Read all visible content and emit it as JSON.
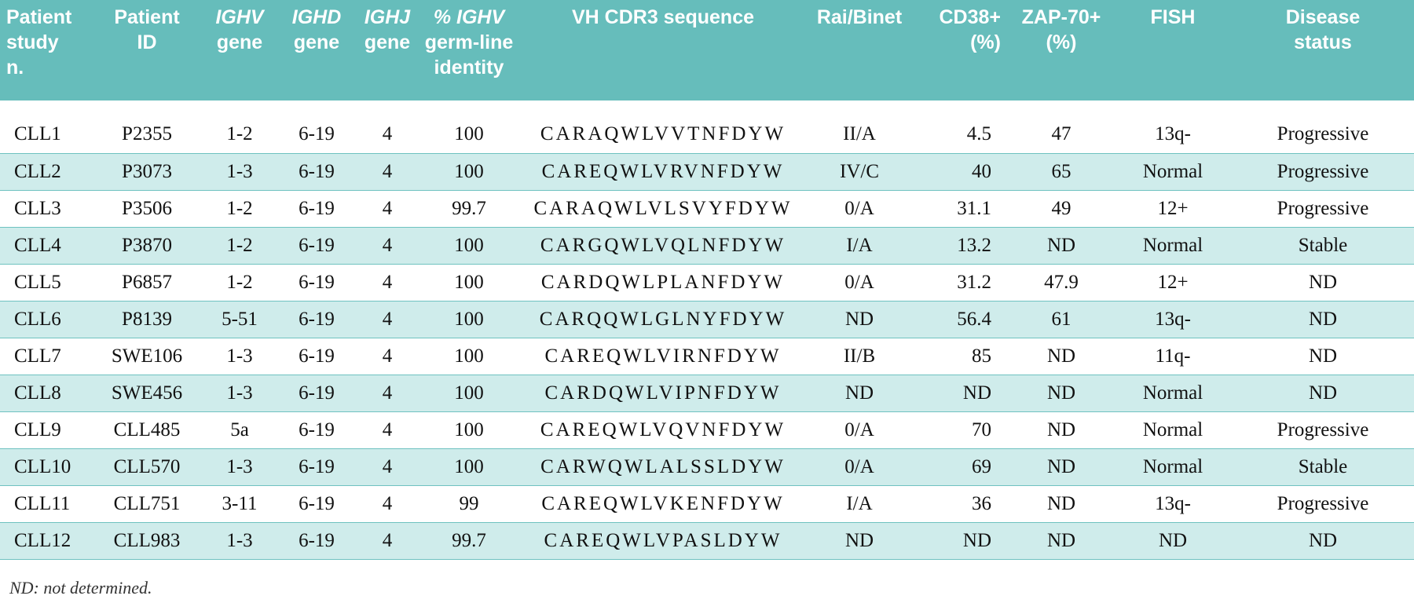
{
  "table": {
    "columns": [
      {
        "key": "study",
        "label_lines": [
          "Patient",
          "study",
          "n."
        ]
      },
      {
        "key": "pid",
        "label_lines": [
          "Patient",
          "ID"
        ]
      },
      {
        "key": "ighv",
        "label_lines": [
          "IGHV",
          "gene"
        ]
      },
      {
        "key": "ighd",
        "label_lines": [
          "IGHD",
          "gene"
        ]
      },
      {
        "key": "ighj",
        "label_lines": [
          "IGHJ",
          "gene"
        ]
      },
      {
        "key": "identity",
        "label_lines": [
          "% IGHV",
          "germ-line",
          "identity"
        ]
      },
      {
        "key": "cdr3",
        "label_lines": [
          "VH CDR3 sequence"
        ]
      },
      {
        "key": "rai",
        "label_lines": [
          "Rai/Binet"
        ]
      },
      {
        "key": "cd38",
        "label_lines": [
          "CD38+",
          "(%)"
        ]
      },
      {
        "key": "zap70",
        "label_lines": [
          "ZAP-70+",
          "(%)"
        ]
      },
      {
        "key": "fish",
        "label_lines": [
          "FISH"
        ]
      },
      {
        "key": "status",
        "label_lines": [
          "Disease",
          "status"
        ]
      }
    ],
    "rows": [
      [
        "CLL1",
        "P2355",
        "1-2",
        "6-19",
        "4",
        "100",
        "CARAQWLVVTNFDYW",
        "II/A",
        "4.5",
        "47",
        "13q-",
        "Progressive"
      ],
      [
        "CLL2",
        "P3073",
        "1-3",
        "6-19",
        "4",
        "100",
        "CAREQWLVRVNFDYW",
        "IV/C",
        "40",
        "65",
        "Normal",
        "Progressive"
      ],
      [
        "CLL3",
        "P3506",
        "1-2",
        "6-19",
        "4",
        "99.7",
        "CARAQWLVLSVYFDYW",
        "0/A",
        "31.1",
        "49",
        "12+",
        "Progressive"
      ],
      [
        "CLL4",
        "P3870",
        "1-2",
        "6-19",
        "4",
        "100",
        "CARGQWLVQLNFDYW",
        "I/A",
        "13.2",
        "ND",
        "Normal",
        "Stable"
      ],
      [
        "CLL5",
        "P6857",
        "1-2",
        "6-19",
        "4",
        "100",
        "CARDQWLPLANFDYW",
        "0/A",
        "31.2",
        "47.9",
        "12+",
        "ND"
      ],
      [
        "CLL6",
        "P8139",
        "5-51",
        "6-19",
        "4",
        "100",
        "CARQQWLGLNYFDYW",
        "ND",
        "56.4",
        "61",
        "13q-",
        "ND"
      ],
      [
        "CLL7",
        "SWE106",
        "1-3",
        "6-19",
        "4",
        "100",
        "CAREQWLVIRNFDYW",
        "II/B",
        "85",
        "ND",
        "11q-",
        "ND"
      ],
      [
        "CLL8",
        "SWE456",
        "1-3",
        "6-19",
        "4",
        "100",
        "CARDQWLVIPNFDYW",
        "ND",
        "ND",
        "ND",
        "Normal",
        "ND"
      ],
      [
        "CLL9",
        "CLL485",
        "5a",
        "6-19",
        "4",
        "100",
        "CAREQWLVQVNFDYW",
        "0/A",
        "70",
        "ND",
        "Normal",
        "Progressive"
      ],
      [
        "CLL10",
        "CLL570",
        "1-3",
        "6-19",
        "4",
        "100",
        "CARWQWLALSSLDYW",
        "0/A",
        "69",
        "ND",
        "Normal",
        "Stable"
      ],
      [
        "CLL11",
        "CLL751",
        "3-11",
        "6-19",
        "4",
        "99",
        "CAREQWLVKENFDYW",
        "I/A",
        "36",
        "ND",
        "13q-",
        "Progressive"
      ],
      [
        "CLL12",
        "CLL983",
        "1-3",
        "6-19",
        "4",
        "99.7",
        "CAREQWLVPASLDYW",
        "ND",
        "ND",
        "ND",
        "ND",
        "ND"
      ]
    ]
  },
  "footnote": "ND: not determined.",
  "colors": {
    "header_bg": "#66bdbb",
    "stripe_bg": "#cfeceb",
    "rule": "#6fc2c0"
  }
}
